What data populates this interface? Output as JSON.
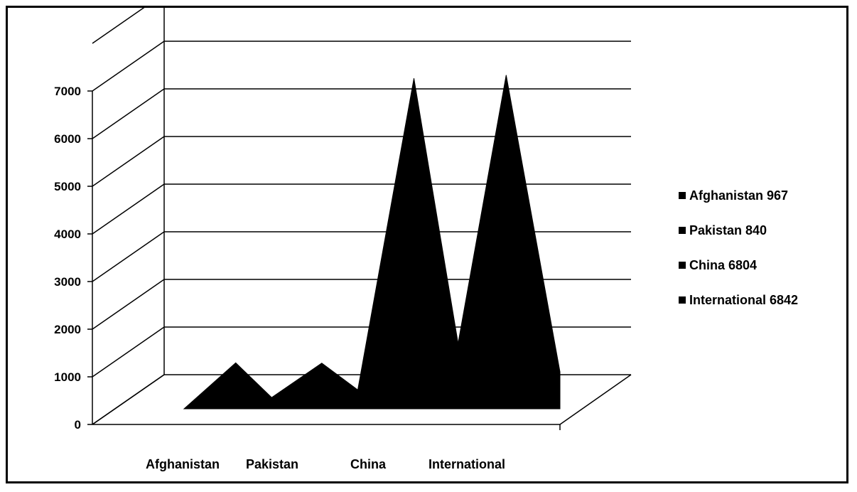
{
  "chart_data": {
    "type": "area",
    "title": "",
    "xlabel": "",
    "ylabel": "",
    "ylim": [
      0,
      7000
    ],
    "yticks": [
      0,
      1000,
      2000,
      3000,
      4000,
      5000,
      6000,
      7000
    ],
    "categories": [
      "Afghanistan",
      "Pakistan",
      "China",
      "International"
    ],
    "grid": true,
    "three_d": true,
    "legend_position": "right",
    "legend": [
      "Afghanistan 967",
      "Pakistan 840",
      "China 6804",
      "International 6842"
    ],
    "series": [
      {
        "name": "Afghanistan 967",
        "values": [
          967,
          0,
          0,
          0
        ],
        "color": "#000000"
      },
      {
        "name": "Pakistan 840",
        "values": [
          0,
          840,
          0,
          0
        ],
        "color": "#000000"
      },
      {
        "name": "China 6804",
        "values": [
          0,
          0,
          6804,
          0
        ],
        "color": "#000000"
      },
      {
        "name": "International 6842",
        "values": [
          0,
          0,
          0,
          6842
        ],
        "color": "#000000"
      }
    ]
  }
}
